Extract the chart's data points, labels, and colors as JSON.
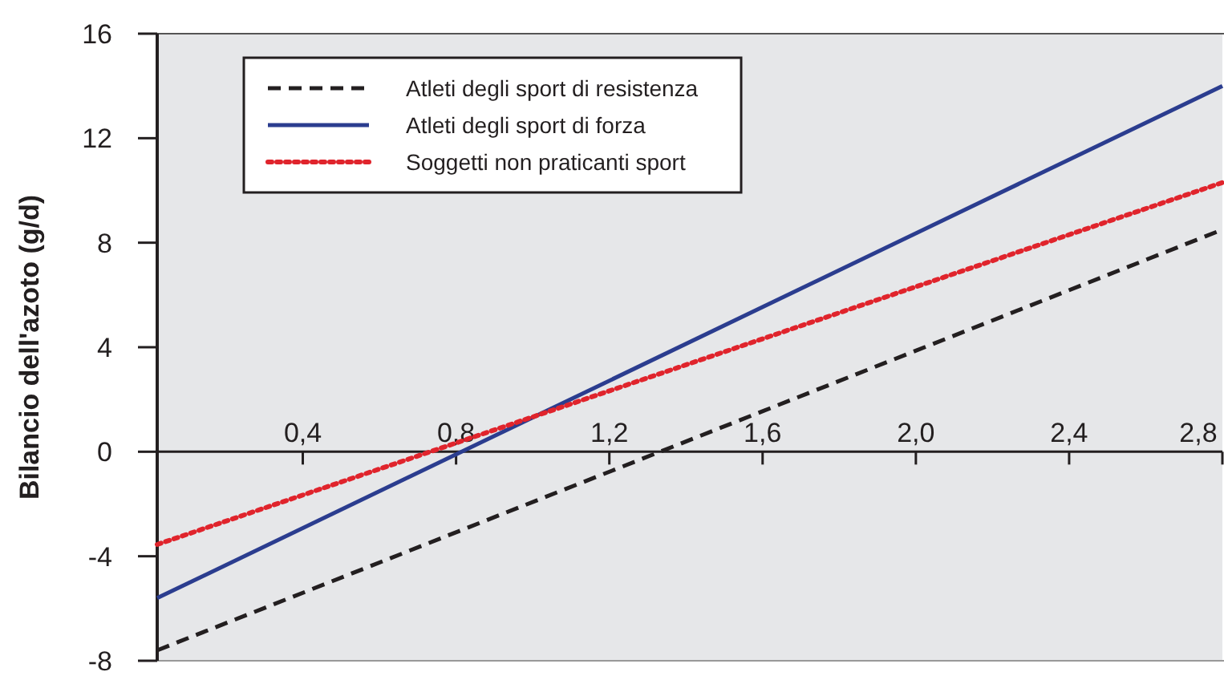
{
  "chart_data": {
    "type": "line",
    "ylabel": "Bilancio dell'azoto (g/d)",
    "x": [
      0.02,
      2.8
    ],
    "xlim": [
      0.02,
      2.8
    ],
    "ylim": [
      -8,
      16
    ],
    "xticks": [
      {
        "value": 0.4,
        "label": "0,4"
      },
      {
        "value": 0.8,
        "label": "0,8"
      },
      {
        "value": 1.2,
        "label": "1,2"
      },
      {
        "value": 1.6,
        "label": "1,6"
      },
      {
        "value": 2.0,
        "label": "2,0"
      },
      {
        "value": 2.4,
        "label": "2,4"
      },
      {
        "value": 2.8,
        "label": "2,8"
      }
    ],
    "yticks": [
      -8,
      -4,
      0,
      4,
      8,
      12,
      16
    ],
    "grid": false,
    "legend": "top left",
    "marker": "none",
    "series": [
      {
        "name": "Atleti degli sport di resistenza",
        "color": "#231f20",
        "line_style": "dashed",
        "values": [
          -7.6,
          8.5
        ]
      },
      {
        "name": "Atleti degli sport di forza",
        "color": "#2b3d8f",
        "line_style": "solid",
        "values": [
          -5.6,
          14.0
        ]
      },
      {
        "name": "Soggetti non praticanti sport",
        "color": "#e0242c",
        "line_style": "dotted",
        "values": [
          -3.55,
          10.3
        ]
      }
    ]
  }
}
